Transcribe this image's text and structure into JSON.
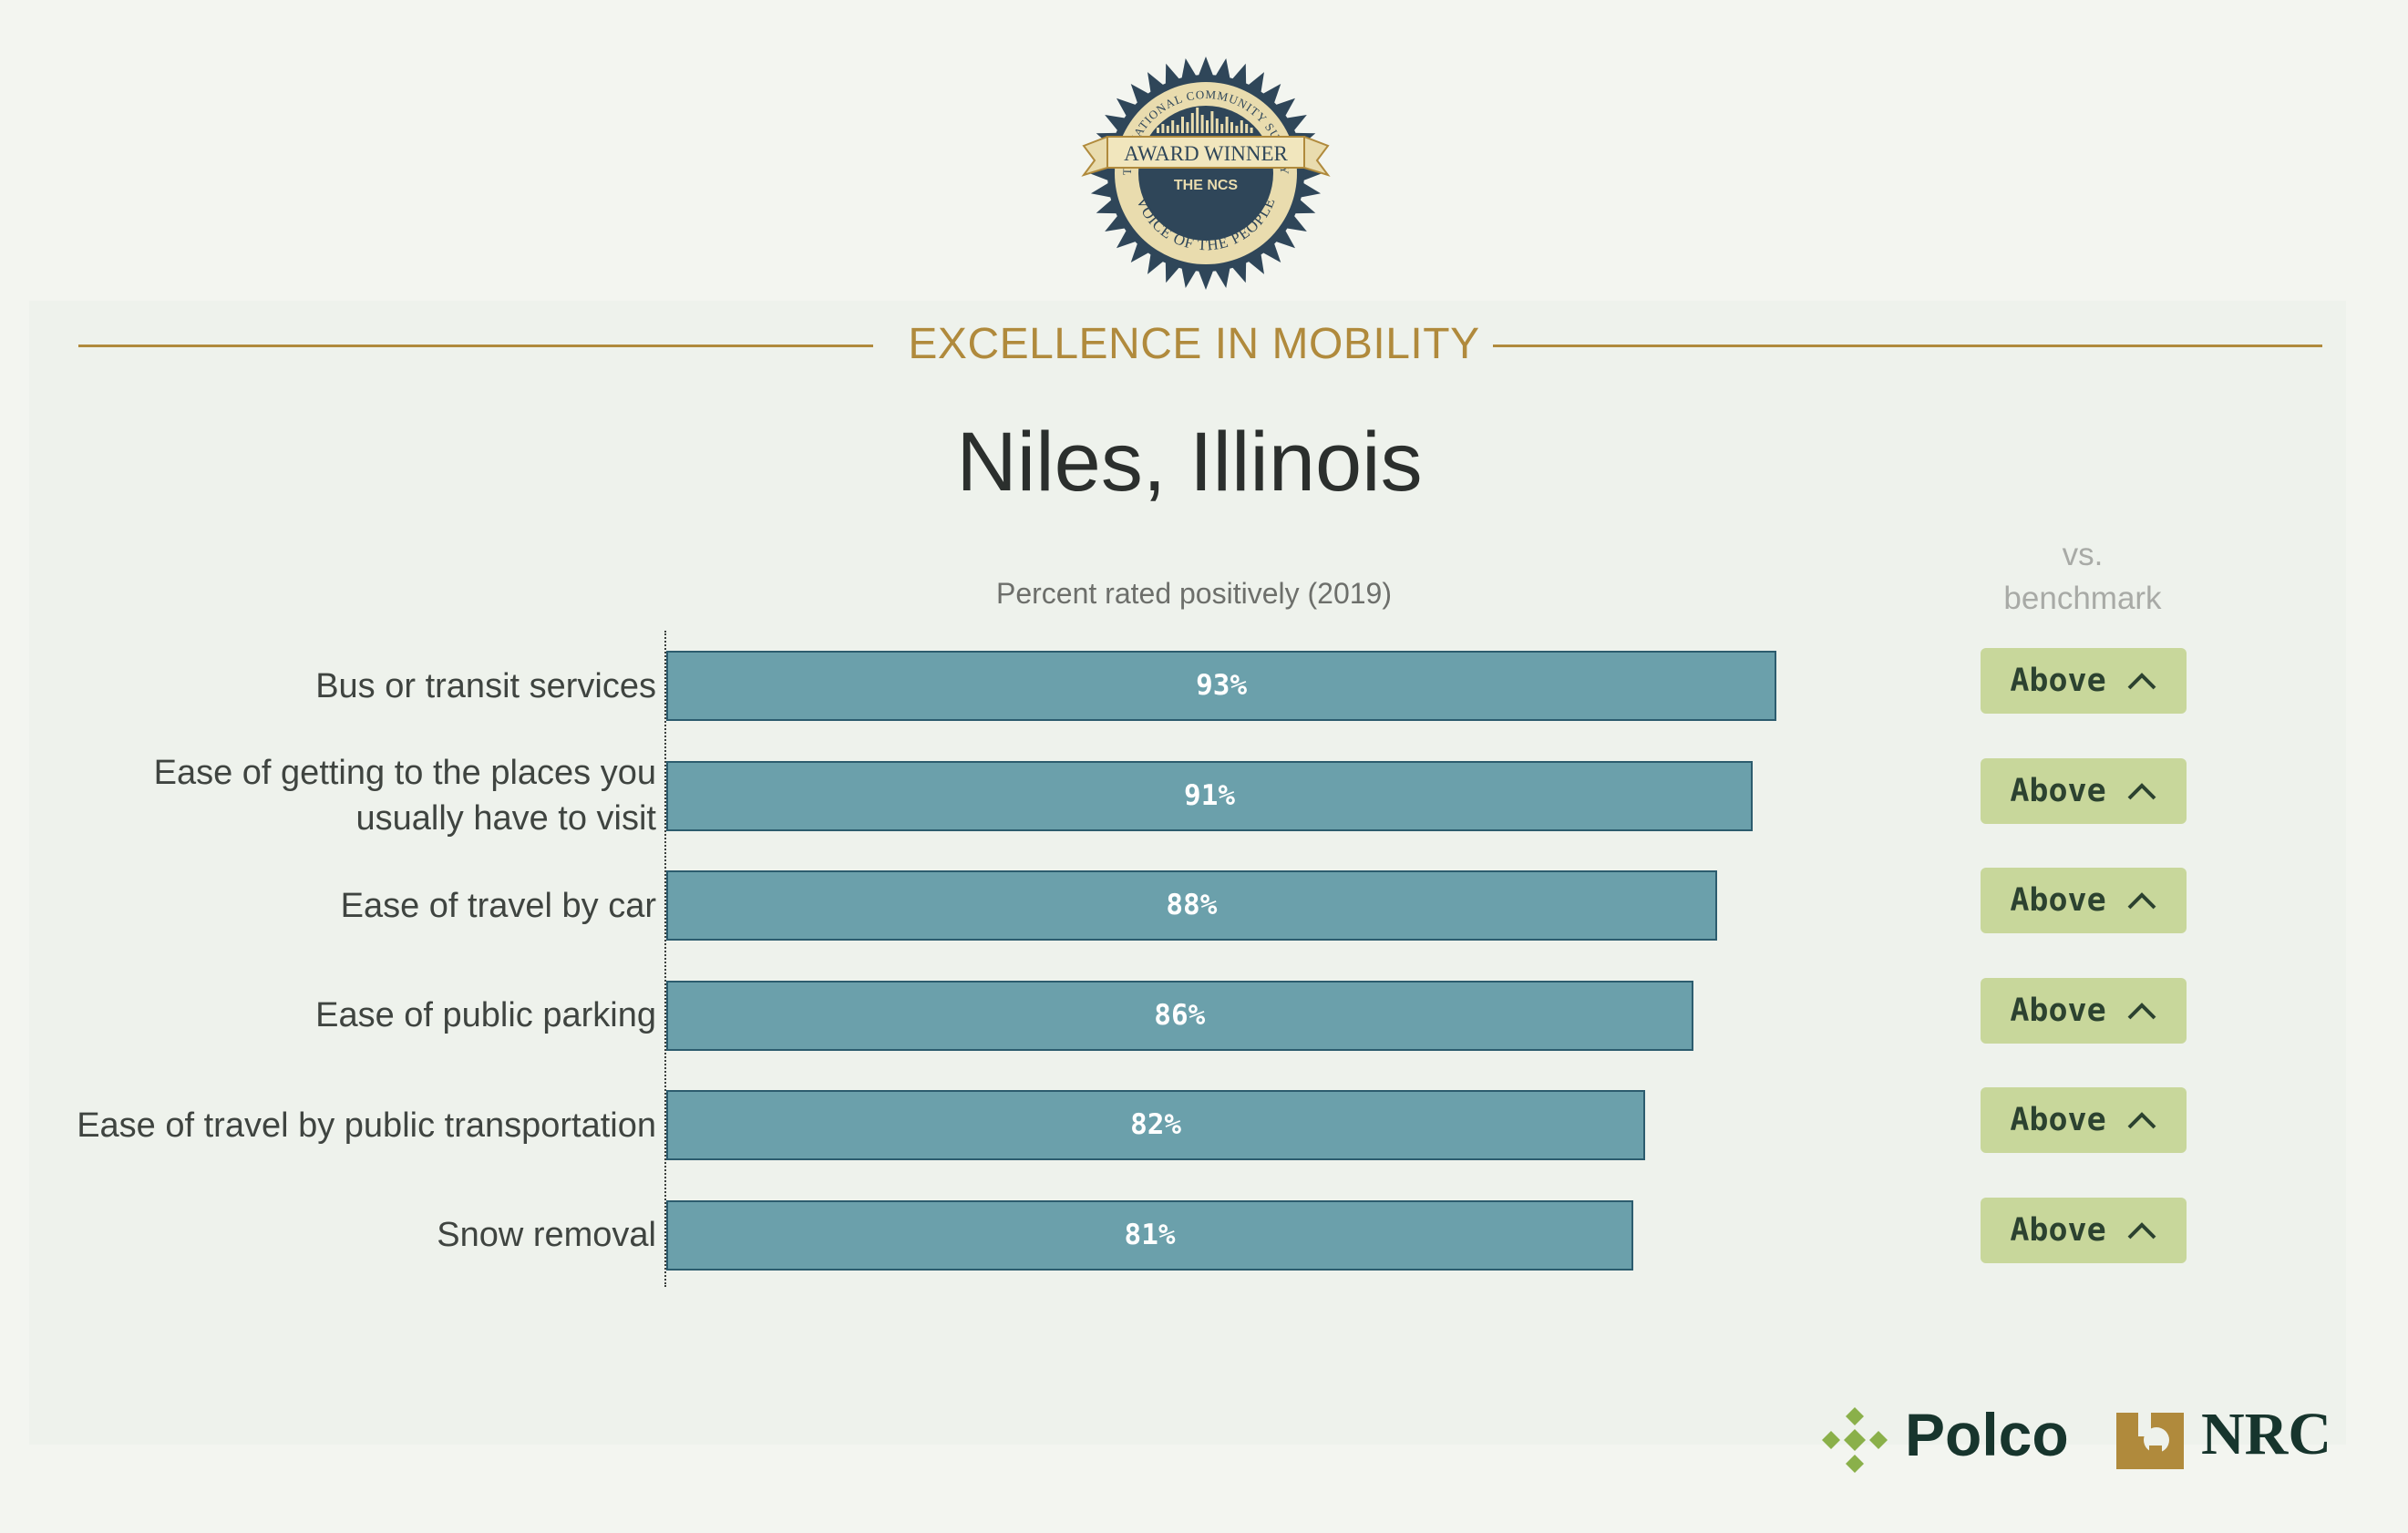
{
  "badge": {
    "arc_top": "THE NATIONAL COMMUNITY SURVEY",
    "ribbon": "AWARD WINNER",
    "mark": "THE NCS",
    "arc_bottom": "VOICE OF THE PEOPLE"
  },
  "section_title": "EXCELLENCE IN MOBILITY",
  "city": "Niles, Illinois",
  "benchmark_header": [
    "vs.",
    "benchmark"
  ],
  "chart_data": {
    "type": "bar",
    "orientation": "horizontal",
    "subtitle": "Percent rated positively (2019)",
    "categories": [
      [
        "Bus or transit services"
      ],
      [
        "Ease of getting to the places you",
        "usually have to visit"
      ],
      [
        "Ease of travel by car"
      ],
      [
        "Ease of public parking"
      ],
      [
        "Ease of travel by public transportation"
      ],
      [
        "Snow removal"
      ]
    ],
    "values": [
      93,
      91,
      88,
      86,
      82,
      81
    ],
    "value_labels": [
      "93%",
      "91%",
      "88%",
      "86%",
      "82%",
      "81%"
    ],
    "xlim": [
      0,
      100
    ],
    "bar_color": "#6ba0ab",
    "benchmark": [
      "Above",
      "Above",
      "Above",
      "Above",
      "Above",
      "Above"
    ],
    "benchmark_icon": "chevron-up-icon",
    "benchmark_color": "#c8d79b"
  },
  "footer": {
    "polco": "Polco",
    "nrc": "NRC"
  },
  "colors": {
    "accent": "#b08a3c",
    "text": "#2b2f2d",
    "brand_dark": "#17352d",
    "brand_green": "#8ab04a"
  }
}
